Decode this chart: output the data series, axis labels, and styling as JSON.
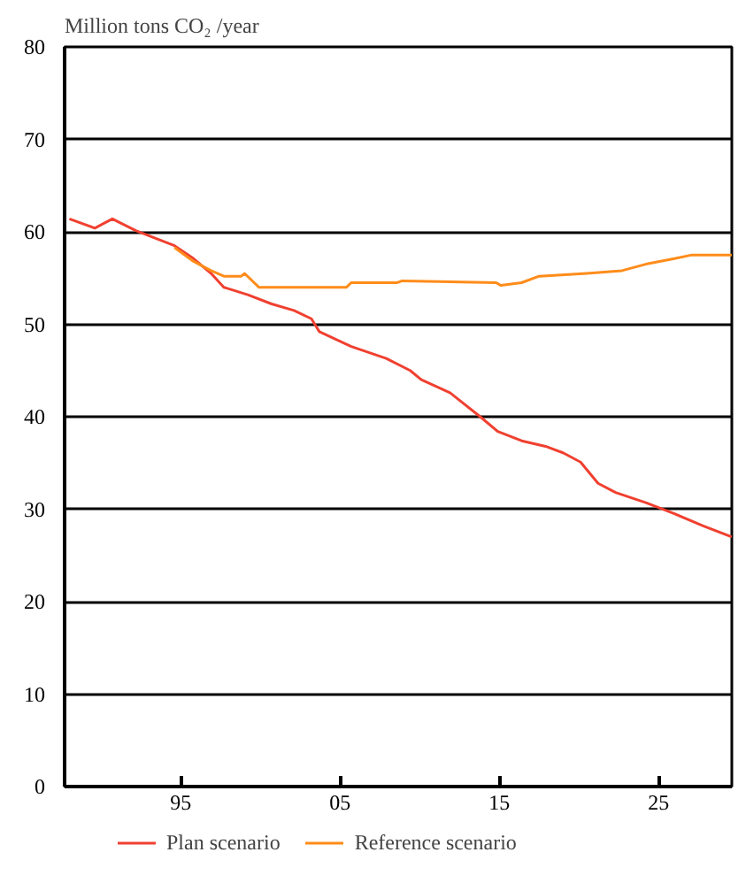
{
  "chart_data": {
    "type": "line",
    "title": "Million tons CO₂ /year",
    "xlim": [
      1987.7,
      2029.6
    ],
    "ylim": [
      0,
      80
    ],
    "xticks": [
      {
        "value": 1995,
        "label": "95"
      },
      {
        "value": 2005,
        "label": "05"
      },
      {
        "value": 2015,
        "label": "15"
      },
      {
        "value": 2025,
        "label": "25"
      }
    ],
    "yticks": [
      0,
      10,
      20,
      30,
      40,
      50,
      60,
      70,
      80
    ],
    "grid": "y",
    "legend": "bottom",
    "marker": "none",
    "line_style": "solid",
    "series": [
      {
        "name": "Plan scenario",
        "color": "#f04030",
        "x": [
          1988,
          1989.6,
          1990.7,
          1992.2,
          1994.6,
          1995.8,
          1996.9,
          1997.7,
          1999.2,
          2000.7,
          2002.1,
          2003.2,
          2003.7,
          2005.7,
          2007.9,
          2009.4,
          2010.1,
          2011.9,
          2013.8,
          2014.9,
          2016.4,
          2017.9,
          2019.0,
          2020.1,
          2021.2,
          2022.3,
          2024.2,
          2026.0,
          2027.8,
          2029.6
        ],
        "values": [
          61.4,
          60.4,
          61.4,
          60.1,
          58.5,
          57.1,
          55.5,
          54.0,
          53.2,
          52.2,
          51.5,
          50.6,
          49.2,
          47.6,
          46.3,
          45.0,
          44.0,
          42.6,
          40.0,
          38.4,
          37.4,
          36.8,
          36.1,
          35.1,
          32.8,
          31.8,
          30.7,
          29.5,
          28.2,
          27.0
        ]
      },
      {
        "name": "Reference scenario",
        "color": "#ff8c1a",
        "x": [
          1994.6,
          1995.8,
          1996.9,
          1997.7,
          1998.8,
          1999.0,
          1999.9,
          2005.4,
          2005.7,
          2008.6,
          2008.9,
          2014.8,
          2015.1,
          2016.4,
          2017.5,
          2020.5,
          2022.7,
          2024.2,
          2026.0,
          2027.1,
          2029.6
        ],
        "values": [
          58.3,
          56.8,
          55.8,
          55.2,
          55.2,
          55.5,
          54.0,
          54.0,
          54.5,
          54.5,
          54.7,
          54.5,
          54.2,
          54.5,
          55.2,
          55.5,
          55.8,
          56.5,
          57.1,
          57.5,
          57.5
        ]
      }
    ]
  }
}
